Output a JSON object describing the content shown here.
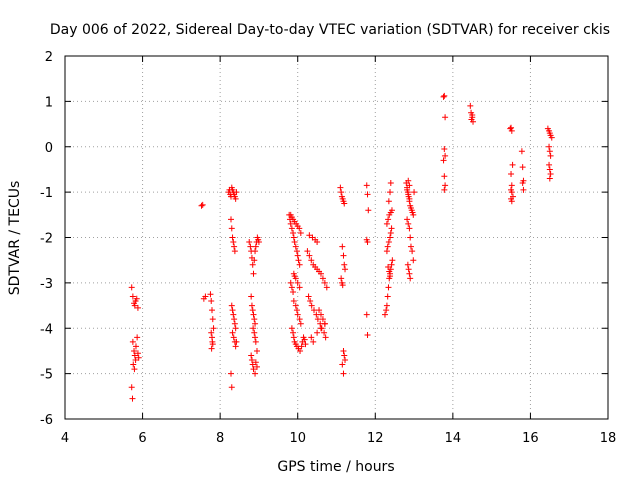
{
  "chart_data": {
    "type": "scatter",
    "title": "Day 006 of 2022, Sidereal Day-to-day VTEC variation (SDTVAR) for receiver ckis",
    "xlabel": "GPS time / hours",
    "ylabel": "SDTVAR / TECUs",
    "xlim": [
      4,
      18
    ],
    "ylim": [
      -6,
      2
    ],
    "xticks": [
      "4",
      "6",
      "8",
      "10",
      "12",
      "14",
      "16",
      "18"
    ],
    "yticks": [
      "-6",
      "-5",
      "-4",
      "-3",
      "-2",
      "-1",
      "0",
      "1",
      "2"
    ],
    "grid": true,
    "marker": "+",
    "color": "#ff0000",
    "series": [
      {
        "name": "SDTVAR",
        "x": [
          5.72,
          5.75,
          5.78,
          5.8,
          5.82,
          5.85,
          5.88,
          5.75,
          5.78,
          5.8,
          5.83,
          5.86,
          5.88,
          5.9,
          5.76,
          5.79,
          5.82,
          5.72,
          5.74,
          7.52,
          7.55,
          7.58,
          7.62,
          7.75,
          7.77,
          7.79,
          7.81,
          7.83,
          7.77,
          7.79,
          7.81,
          7.78,
          7.8,
          8.22,
          8.24,
          8.26,
          8.28,
          8.3,
          8.32,
          8.34,
          8.36,
          8.38,
          8.4,
          8.42,
          8.28,
          8.3,
          8.32,
          8.34,
          8.36,
          8.38,
          8.3,
          8.32,
          8.34,
          8.36,
          8.38,
          8.4,
          8.32,
          8.35,
          8.38,
          8.4,
          8.42,
          8.28,
          8.3,
          8.75,
          8.78,
          8.8,
          8.82,
          8.84,
          8.86,
          8.88,
          8.9,
          8.92,
          8.94,
          8.96,
          8.98,
          9.0,
          8.8,
          8.82,
          8.84,
          8.86,
          8.88,
          8.9,
          8.85,
          8.88,
          8.9,
          8.92,
          8.95,
          8.8,
          8.82,
          8.84,
          8.86,
          8.9,
          8.92,
          8.95,
          9.78,
          9.8,
          9.82,
          9.85,
          9.88,
          9.9,
          9.92,
          9.95,
          9.98,
          10.0,
          10.02,
          10.05,
          9.82,
          9.85,
          9.88,
          9.9,
          9.95,
          9.98,
          10.0,
          10.05,
          10.08,
          9.85,
          9.88,
          9.9,
          9.92,
          9.95,
          9.98,
          10.02,
          10.06,
          10.1,
          10.12,
          10.15,
          10.18,
          10.2,
          9.9,
          9.92,
          9.95,
          10.0,
          10.05,
          9.82,
          9.85,
          9.88,
          9.92,
          9.96,
          10.0,
          10.04,
          10.08,
          10.25,
          10.3,
          10.35,
          10.4,
          10.45,
          10.5,
          10.55,
          10.6,
          10.65,
          10.7,
          10.75,
          10.28,
          10.32,
          10.36,
          10.42,
          10.48,
          10.52,
          10.58,
          10.62,
          10.68,
          10.72,
          10.3,
          10.38,
          10.45,
          10.5,
          10.55,
          10.6,
          10.65,
          10.7,
          10.35,
          10.4,
          10.5,
          10.6,
          10.7,
          11.1,
          11.12,
          11.14,
          11.16,
          11.18,
          11.2,
          11.15,
          11.18,
          11.2,
          11.22,
          11.12,
          11.14,
          11.16,
          11.18,
          11.2,
          11.22,
          11.15,
          11.18,
          11.78,
          11.8,
          11.82,
          11.78,
          11.8,
          11.78,
          11.8,
          12.25,
          12.28,
          12.3,
          12.32,
          12.34,
          12.36,
          12.38,
          12.4,
          12.42,
          12.44,
          12.3,
          12.32,
          12.35,
          12.38,
          12.4,
          12.42,
          12.3,
          12.33,
          12.36,
          12.4,
          12.43,
          12.35,
          12.38,
          12.4,
          12.33,
          12.36,
          12.38,
          12.8,
          12.82,
          12.84,
          12.86,
          12.88,
          12.9,
          12.92,
          12.94,
          12.96,
          12.98,
          13.0,
          12.82,
          12.85,
          12.88,
          12.9,
          12.92,
          12.95,
          12.98,
          12.84,
          12.86,
          12.88,
          12.9,
          12.85,
          12.88,
          12.82,
          12.85,
          12.88,
          13.76,
          13.78,
          13.8,
          13.78,
          13.8,
          13.76,
          13.78,
          13.8,
          13.78,
          14.45,
          14.47,
          14.5,
          14.52,
          14.48,
          14.5,
          15.48,
          15.5,
          15.52,
          15.54,
          15.5,
          15.52,
          15.5,
          15.52,
          15.55,
          15.5,
          15.52,
          15.78,
          15.8,
          15.82,
          15.8,
          15.82,
          16.45,
          16.48,
          16.5,
          16.52,
          16.55,
          16.48,
          16.5,
          16.52,
          16.48,
          16.5,
          16.52,
          16.5
        ],
        "y": [
          -3.1,
          -3.3,
          -3.45,
          -3.5,
          -3.4,
          -3.35,
          -3.55,
          -4.3,
          -4.5,
          -4.6,
          -4.4,
          -4.2,
          -4.55,
          -4.65,
          -4.8,
          -4.9,
          -4.7,
          -5.3,
          -5.55,
          -1.3,
          -1.28,
          -3.35,
          -3.3,
          -3.25,
          -3.4,
          -3.6,
          -3.8,
          -4.0,
          -4.1,
          -4.2,
          -4.35,
          -4.45,
          -4.3,
          -1.0,
          -0.95,
          -1.05,
          -1.1,
          -0.9,
          -0.95,
          -1.0,
          -1.05,
          -1.1,
          -1.15,
          -1.0,
          -1.6,
          -1.8,
          -2.0,
          -2.1,
          -2.2,
          -2.3,
          -3.5,
          -3.6,
          -3.7,
          -3.8,
          -3.9,
          -4.0,
          -4.1,
          -4.2,
          -4.3,
          -4.4,
          -4.3,
          -5.0,
          -5.3,
          -2.1,
          -2.2,
          -2.3,
          -2.45,
          -2.6,
          -2.8,
          -2.5,
          -2.3,
          -2.2,
          -2.1,
          -2.0,
          -2.05,
          -2.1,
          -3.3,
          -3.5,
          -3.6,
          -3.7,
          -3.8,
          -3.9,
          -4.0,
          -4.1,
          -4.2,
          -4.3,
          -4.5,
          -4.6,
          -4.7,
          -4.8,
          -4.9,
          -5.0,
          -4.75,
          -4.85,
          -1.5,
          -1.6,
          -1.7,
          -1.8,
          -1.9,
          -2.0,
          -2.1,
          -2.2,
          -2.3,
          -2.4,
          -2.5,
          -2.6,
          -3.0,
          -3.1,
          -3.2,
          -3.4,
          -3.5,
          -3.6,
          -3.7,
          -3.8,
          -3.9,
          -4.0,
          -4.1,
          -4.2,
          -4.3,
          -4.35,
          -4.4,
          -4.45,
          -4.5,
          -4.4,
          -4.3,
          -4.2,
          -4.25,
          -4.35,
          -2.8,
          -2.85,
          -2.9,
          -3.0,
          -3.1,
          -1.5,
          -1.55,
          -1.6,
          -1.65,
          -1.7,
          -1.75,
          -1.8,
          -1.9,
          -2.3,
          -2.4,
          -2.5,
          -2.6,
          -2.65,
          -2.7,
          -2.75,
          -2.8,
          -2.9,
          -3.0,
          -3.1,
          -3.3,
          -3.4,
          -3.5,
          -3.6,
          -3.7,
          -3.8,
          -3.9,
          -4.0,
          -4.1,
          -4.2,
          -1.95,
          -2.0,
          -2.05,
          -2.1,
          -3.6,
          -3.7,
          -3.8,
          -3.9,
          -4.2,
          -4.3,
          -4.1,
          -4.0,
          -3.9,
          -0.9,
          -1.0,
          -1.1,
          -1.15,
          -1.2,
          -1.25,
          -2.2,
          -2.4,
          -2.6,
          -2.7,
          -2.9,
          -3.0,
          -3.05,
          -4.5,
          -4.6,
          -4.7,
          -4.8,
          -5.0,
          -0.85,
          -1.05,
          -1.4,
          -2.05,
          -2.1,
          -3.7,
          -4.15,
          -3.7,
          -3.6,
          -3.5,
          -3.3,
          -3.1,
          -2.9,
          -2.8,
          -2.7,
          -2.6,
          -2.5,
          -2.3,
          -2.2,
          -2.1,
          -2.0,
          -1.9,
          -1.8,
          -1.7,
          -1.6,
          -1.5,
          -1.45,
          -1.4,
          -1.2,
          -1.0,
          -0.8,
          -2.65,
          -2.75,
          -2.85,
          -0.8,
          -0.9,
          -1.0,
          -1.1,
          -1.2,
          -1.3,
          -1.35,
          -1.4,
          -1.45,
          -1.5,
          -1.0,
          -1.6,
          -1.7,
          -1.8,
          -2.0,
          -2.2,
          -2.3,
          -2.5,
          -2.6,
          -2.7,
          -2.8,
          -2.9,
          -0.75,
          -0.85,
          -0.95,
          -1.05,
          -1.15,
          1.1,
          1.12,
          0.65,
          -0.05,
          -0.2,
          -0.3,
          -0.65,
          -0.85,
          -0.95,
          0.9,
          0.75,
          0.65,
          0.55,
          0.6,
          0.7,
          0.4,
          0.42,
          0.35,
          -0.4,
          -0.6,
          -0.85,
          -0.95,
          -1.0,
          -1.1,
          -1.15,
          -1.2,
          -0.1,
          -0.45,
          -0.75,
          -0.8,
          -0.95,
          0.4,
          0.35,
          0.3,
          0.25,
          0.2,
          0.0,
          -0.1,
          -0.2,
          -0.4,
          -0.5,
          -0.6,
          -0.7
        ]
      }
    ]
  }
}
